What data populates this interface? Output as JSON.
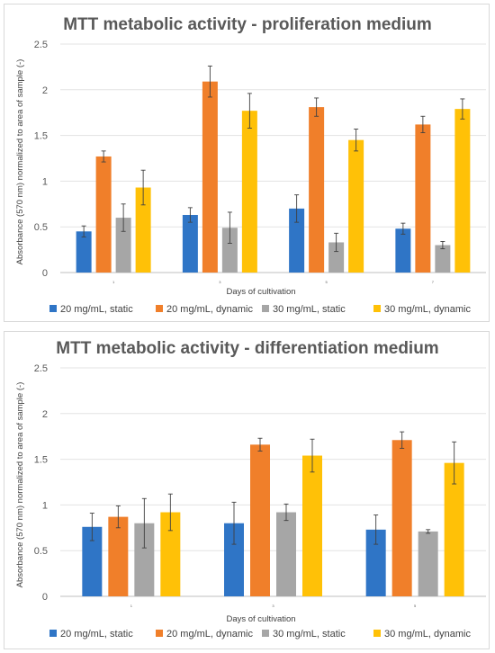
{
  "chart_data": [
    {
      "type": "bar",
      "title": "MTT metabolic activity - proliferation medium",
      "xlabel": "Days of cultivation",
      "ylabel": "Absorbance (570 nm) normalized to area of sample (-)",
      "ylim": [
        0,
        2.5
      ],
      "yticks": [
        "0",
        "0.5",
        "1",
        "1.5",
        "2",
        "2.5"
      ],
      "categories": [
        "1",
        "3",
        "5",
        "7"
      ],
      "grid": true,
      "legend": "bottom",
      "series": [
        {
          "name": "20 mg/mL, static",
          "color": "#2f75c6",
          "values": [
            0.45,
            0.63,
            0.7,
            0.48
          ],
          "errors": [
            0.06,
            0.08,
            0.15,
            0.06
          ]
        },
        {
          "name": "20 mg/mL, dynamic",
          "color": "#f07f2a",
          "values": [
            1.27,
            2.09,
            1.81,
            1.62
          ],
          "errors": [
            0.06,
            0.17,
            0.1,
            0.09
          ]
        },
        {
          "name": "30 mg/mL, static",
          "color": "#a6a6a6",
          "values": [
            0.6,
            0.49,
            0.33,
            0.3
          ],
          "errors": [
            0.15,
            0.17,
            0.1,
            0.04
          ]
        },
        {
          "name": "30 mg/mL, dynamic",
          "color": "#ffc107",
          "values": [
            0.93,
            1.77,
            1.45,
            1.79
          ],
          "errors": [
            0.19,
            0.19,
            0.12,
            0.11
          ]
        }
      ]
    },
    {
      "type": "bar",
      "title": "MTT metabolic activity - differentiation medium",
      "xlabel": "Days of cultivation",
      "ylabel": "Absorbance (570 nm) normalized to area of sample (-)",
      "ylim": [
        0,
        2.5
      ],
      "yticks": [
        "0",
        "0.5",
        "1",
        "1.5",
        "2",
        "2.5"
      ],
      "categories": [
        "1",
        "3",
        "5"
      ],
      "grid": true,
      "legend": "bottom",
      "series": [
        {
          "name": "20 mg/mL, static",
          "color": "#2f75c6",
          "values": [
            0.76,
            0.8,
            0.73
          ],
          "errors": [
            0.15,
            0.23,
            0.16
          ]
        },
        {
          "name": "20 mg/mL, dynamic",
          "color": "#f07f2a",
          "values": [
            0.87,
            1.66,
            1.71
          ],
          "errors": [
            0.12,
            0.07,
            0.09
          ]
        },
        {
          "name": "30 mg/mL, static",
          "color": "#a6a6a6",
          "values": [
            0.8,
            0.92,
            0.71
          ],
          "errors": [
            0.27,
            0.09,
            0.02
          ]
        },
        {
          "name": "30 mg/mL, dynamic",
          "color": "#ffc107",
          "values": [
            0.92,
            1.54,
            1.46
          ],
          "errors": [
            0.2,
            0.18,
            0.23
          ]
        }
      ]
    }
  ]
}
